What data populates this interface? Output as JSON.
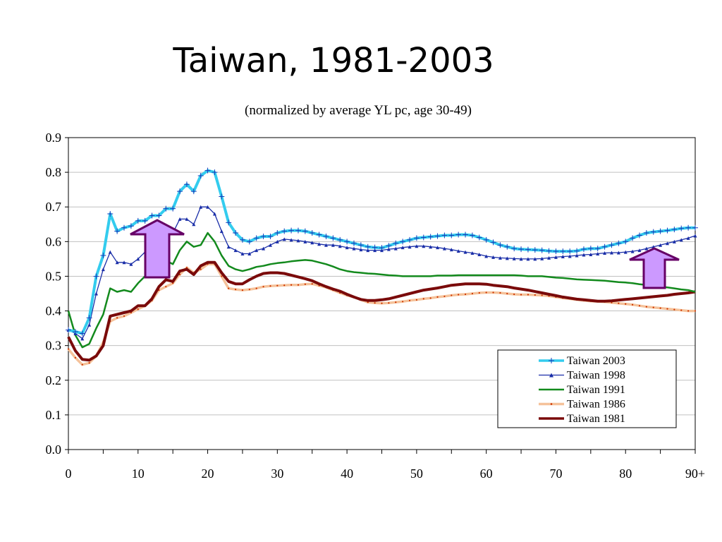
{
  "title": "Taiwan, 1981-2003",
  "subtitle": "(normalized by average YL pc, age 30-49)",
  "chart_data": {
    "type": "line",
    "xlim": [
      0,
      90
    ],
    "ylim": [
      0,
      0.9
    ],
    "x_ticks": [
      "0",
      "10",
      "20",
      "30",
      "40",
      "50",
      "60",
      "70",
      "80",
      "90+"
    ],
    "y_ticks": [
      "0.0",
      "0.1",
      "0.2",
      "0.3",
      "0.4",
      "0.5",
      "0.6",
      "0.7",
      "0.8",
      "0.9"
    ],
    "grid": "horizontal",
    "legend_position": "bottom-right",
    "x": [
      0,
      1,
      2,
      3,
      4,
      5,
      6,
      7,
      8,
      9,
      10,
      11,
      12,
      13,
      14,
      15,
      16,
      17,
      18,
      19,
      20,
      21,
      22,
      23,
      24,
      25,
      26,
      27,
      28,
      29,
      30,
      31,
      32,
      33,
      34,
      35,
      36,
      37,
      38,
      39,
      40,
      41,
      42,
      43,
      44,
      45,
      46,
      47,
      48,
      49,
      50,
      51,
      52,
      53,
      54,
      55,
      56,
      57,
      58,
      59,
      60,
      61,
      62,
      63,
      64,
      65,
      66,
      67,
      68,
      69,
      70,
      71,
      72,
      73,
      74,
      75,
      76,
      77,
      78,
      79,
      80,
      81,
      82,
      83,
      84,
      85,
      86,
      87,
      88,
      89,
      90
    ],
    "series": [
      {
        "name": "Taiwan 2003",
        "color": "#33ccee",
        "values": [
          0.345,
          0.34,
          0.335,
          0.38,
          0.5,
          0.56,
          0.68,
          0.63,
          0.64,
          0.645,
          0.66,
          0.66,
          0.675,
          0.675,
          0.695,
          0.695,
          0.745,
          0.765,
          0.745,
          0.79,
          0.805,
          0.8,
          0.73,
          0.655,
          0.625,
          0.605,
          0.6,
          0.61,
          0.615,
          0.615,
          0.625,
          0.63,
          0.632,
          0.632,
          0.63,
          0.625,
          0.62,
          0.615,
          0.61,
          0.605,
          0.6,
          0.595,
          0.59,
          0.585,
          0.583,
          0.582,
          0.588,
          0.595,
          0.6,
          0.605,
          0.61,
          0.612,
          0.614,
          0.616,
          0.618,
          0.618,
          0.62,
          0.62,
          0.618,
          0.612,
          0.605,
          0.598,
          0.59,
          0.585,
          0.58,
          0.578,
          0.577,
          0.576,
          0.575,
          0.573,
          0.572,
          0.572,
          0.572,
          0.573,
          0.578,
          0.58,
          0.58,
          0.585,
          0.59,
          0.595,
          0.6,
          0.61,
          0.618,
          0.625,
          0.628,
          0.63,
          0.632,
          0.635,
          0.638,
          0.64,
          0.64
        ]
      },
      {
        "name": "Taiwan 1998",
        "color": "#1a2ea8",
        "values": [
          0.345,
          0.335,
          0.32,
          0.36,
          0.45,
          0.52,
          0.57,
          0.54,
          0.54,
          0.535,
          0.55,
          0.57,
          0.6,
          0.61,
          0.625,
          0.625,
          0.665,
          0.665,
          0.65,
          0.7,
          0.7,
          0.68,
          0.63,
          0.585,
          0.575,
          0.565,
          0.565,
          0.575,
          0.58,
          0.59,
          0.6,
          0.607,
          0.605,
          0.603,
          0.6,
          0.597,
          0.593,
          0.59,
          0.59,
          0.587,
          0.583,
          0.58,
          0.577,
          0.575,
          0.575,
          0.575,
          0.578,
          0.58,
          0.583,
          0.585,
          0.587,
          0.587,
          0.585,
          0.583,
          0.58,
          0.577,
          0.573,
          0.57,
          0.567,
          0.563,
          0.558,
          0.555,
          0.553,
          0.552,
          0.551,
          0.55,
          0.55,
          0.55,
          0.551,
          0.553,
          0.555,
          0.557,
          0.558,
          0.56,
          0.562,
          0.563,
          0.565,
          0.567,
          0.568,
          0.568,
          0.57,
          0.572,
          0.575,
          0.58,
          0.585,
          0.59,
          0.595,
          0.6,
          0.605,
          0.61,
          0.617
        ]
      },
      {
        "name": "Taiwan 1991",
        "color": "#138a1d",
        "values": [
          0.4,
          0.33,
          0.295,
          0.305,
          0.35,
          0.39,
          0.465,
          0.455,
          0.46,
          0.455,
          0.48,
          0.5,
          0.52,
          0.53,
          0.545,
          0.535,
          0.575,
          0.6,
          0.585,
          0.59,
          0.625,
          0.6,
          0.56,
          0.53,
          0.52,
          0.515,
          0.52,
          0.527,
          0.53,
          0.535,
          0.538,
          0.54,
          0.543,
          0.545,
          0.547,
          0.545,
          0.54,
          0.535,
          0.528,
          0.52,
          0.515,
          0.512,
          0.51,
          0.508,
          0.507,
          0.505,
          0.503,
          0.502,
          0.5,
          0.5,
          0.5,
          0.5,
          0.5,
          0.502,
          0.502,
          0.502,
          0.503,
          0.503,
          0.503,
          0.503,
          0.503,
          0.503,
          0.503,
          0.503,
          0.503,
          0.502,
          0.5,
          0.5,
          0.5,
          0.498,
          0.496,
          0.495,
          0.493,
          0.491,
          0.49,
          0.489,
          0.488,
          0.487,
          0.485,
          0.483,
          0.482,
          0.48,
          0.477,
          0.475,
          0.472,
          0.47,
          0.468,
          0.465,
          0.462,
          0.46,
          0.455
        ]
      },
      {
        "name": "Taiwan 1986",
        "color": "#f5c29a",
        "values": [
          0.29,
          0.265,
          0.245,
          0.25,
          0.27,
          0.31,
          0.37,
          0.38,
          0.385,
          0.395,
          0.405,
          0.415,
          0.43,
          0.46,
          0.47,
          0.48,
          0.505,
          0.525,
          0.51,
          0.52,
          0.535,
          0.535,
          0.5,
          0.465,
          0.462,
          0.46,
          0.462,
          0.465,
          0.47,
          0.472,
          0.473,
          0.474,
          0.475,
          0.475,
          0.477,
          0.478,
          0.473,
          0.468,
          0.46,
          0.452,
          0.445,
          0.44,
          0.432,
          0.425,
          0.423,
          0.422,
          0.423,
          0.425,
          0.427,
          0.43,
          0.432,
          0.435,
          0.437,
          0.44,
          0.442,
          0.445,
          0.447,
          0.448,
          0.45,
          0.452,
          0.453,
          0.453,
          0.452,
          0.45,
          0.448,
          0.447,
          0.447,
          0.446,
          0.445,
          0.443,
          0.44,
          0.437,
          0.435,
          0.432,
          0.43,
          0.428,
          0.427,
          0.426,
          0.424,
          0.422,
          0.42,
          0.418,
          0.415,
          0.412,
          0.41,
          0.408,
          0.406,
          0.404,
          0.402,
          0.4,
          0.4
        ]
      },
      {
        "name": "Taiwan 1981",
        "color": "#7a0a0a",
        "values": [
          0.325,
          0.285,
          0.26,
          0.258,
          0.27,
          0.3,
          0.385,
          0.39,
          0.395,
          0.4,
          0.415,
          0.415,
          0.435,
          0.47,
          0.49,
          0.485,
          0.515,
          0.52,
          0.505,
          0.53,
          0.54,
          0.54,
          0.51,
          0.485,
          0.478,
          0.478,
          0.49,
          0.5,
          0.508,
          0.51,
          0.51,
          0.508,
          0.503,
          0.498,
          0.493,
          0.487,
          0.478,
          0.47,
          0.463,
          0.457,
          0.448,
          0.44,
          0.433,
          0.43,
          0.43,
          0.432,
          0.435,
          0.44,
          0.445,
          0.45,
          0.455,
          0.46,
          0.463,
          0.466,
          0.47,
          0.474,
          0.476,
          0.478,
          0.478,
          0.478,
          0.477,
          0.474,
          0.472,
          0.47,
          0.466,
          0.463,
          0.46,
          0.456,
          0.452,
          0.448,
          0.444,
          0.44,
          0.437,
          0.434,
          0.432,
          0.43,
          0.428,
          0.428,
          0.429,
          0.431,
          0.433,
          0.435,
          0.437,
          0.439,
          0.441,
          0.443,
          0.445,
          0.448,
          0.45,
          0.452,
          0.455
        ]
      }
    ]
  },
  "arrows": {
    "fill_color": "#cc99ff",
    "border_color": "#660066"
  }
}
